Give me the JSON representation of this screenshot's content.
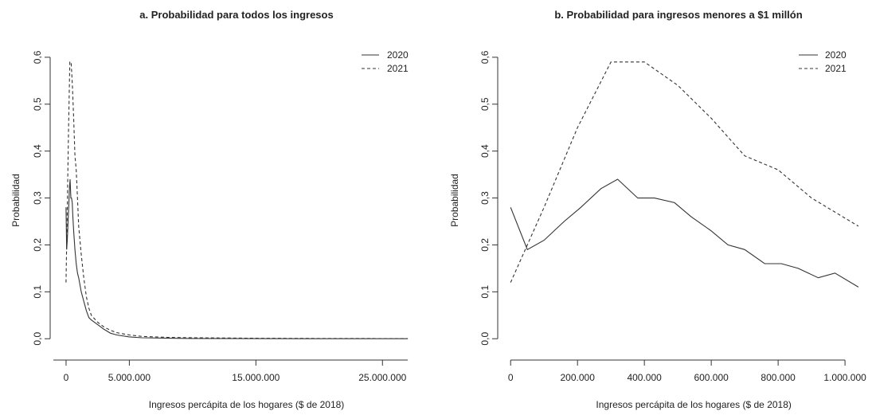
{
  "chart_data": [
    {
      "type": "line",
      "title": "a. Probabilidad para todos los ingresos",
      "xlabel": "Ingresos percápita de los hogares ($ de 2018)",
      "ylabel": "Probabilidad",
      "xlim": [
        -500000,
        27500000
      ],
      "ylim": [
        -0.02,
        0.61
      ],
      "x_ticks": [
        {
          "value": 0,
          "label": "0"
        },
        {
          "value": 5000000,
          "label": "5.000.000"
        },
        {
          "value": 15000000,
          "label": "15.000.000"
        },
        {
          "value": 25000000,
          "label": "25.000.000"
        }
      ],
      "x_axis_range": [
        -1000000,
        27000000
      ],
      "y_ticks": [
        {
          "value": 0.0,
          "label": "0,0"
        },
        {
          "value": 0.1,
          "label": "0,1"
        },
        {
          "value": 0.2,
          "label": "0,2"
        },
        {
          "value": 0.3,
          "label": "0,3"
        },
        {
          "value": 0.4,
          "label": "0,4"
        },
        {
          "value": 0.5,
          "label": "0,5"
        },
        {
          "value": 0.6,
          "label": "0,6"
        }
      ],
      "legend_position": "top-right",
      "series": [
        {
          "name": "2020",
          "style": "solid",
          "x": [
            0,
            50000,
            100000,
            160000,
            210000,
            270000,
            320000,
            380000,
            430000,
            490000,
            540000,
            600000,
            700000,
            800000,
            900000,
            1000000,
            1200000,
            1400000,
            1600000,
            1800000,
            2000000,
            2500000,
            3000000,
            3500000,
            4000000,
            5000000,
            6000000,
            8000000,
            10000000,
            15000000,
            20000000,
            25000000,
            27000000
          ],
          "y": [
            0.28,
            0.19,
            0.21,
            0.25,
            0.28,
            0.32,
            0.34,
            0.3,
            0.3,
            0.29,
            0.26,
            0.23,
            0.19,
            0.16,
            0.14,
            0.13,
            0.1,
            0.08,
            0.06,
            0.045,
            0.04,
            0.03,
            0.02,
            0.012,
            0.008,
            0.004,
            0.002,
            0.001,
            0.0005,
            0.0002,
            0.0001,
            0.0001,
            0.0001
          ]
        },
        {
          "name": "2021",
          "style": "dashed",
          "x": [
            0,
            100000,
            200000,
            300000,
            400000,
            500000,
            600000,
            700000,
            800000,
            900000,
            1000000,
            1200000,
            1400000,
            1600000,
            1800000,
            2000000,
            2500000,
            3000000,
            3500000,
            4000000,
            5000000,
            6000000,
            8000000,
            10000000,
            15000000,
            20000000,
            25000000,
            27000000
          ],
          "y": [
            0.12,
            0.28,
            0.45,
            0.59,
            0.59,
            0.54,
            0.47,
            0.39,
            0.36,
            0.3,
            0.24,
            0.18,
            0.13,
            0.09,
            0.065,
            0.05,
            0.035,
            0.025,
            0.018,
            0.013,
            0.008,
            0.005,
            0.003,
            0.002,
            0.001,
            0.0005,
            0.0003,
            0.0003
          ]
        }
      ]
    },
    {
      "type": "line",
      "title": "b. Probabilidad para ingresos menores a $1 millón",
      "xlabel": "Ingresos percápita de los hogares ($ de 2018)",
      "ylabel": "Probabilidad",
      "xlim": [
        -10000,
        1045000
      ],
      "ylim": [
        -0.02,
        0.61
      ],
      "x_ticks": [
        {
          "value": 0,
          "label": "0"
        },
        {
          "value": 200000,
          "label": "200.000"
        },
        {
          "value": 400000,
          "label": "400.000"
        },
        {
          "value": 600000,
          "label": "600.000"
        },
        {
          "value": 800000,
          "label": "800.000"
        },
        {
          "value": 1000000,
          "label": "1.000.000"
        }
      ],
      "x_axis_range": [
        0,
        1000000
      ],
      "y_ticks": [
        {
          "value": 0.0,
          "label": "0,0"
        },
        {
          "value": 0.1,
          "label": "0,1"
        },
        {
          "value": 0.2,
          "label": "0,2"
        },
        {
          "value": 0.3,
          "label": "0,3"
        },
        {
          "value": 0.4,
          "label": "0,4"
        },
        {
          "value": 0.5,
          "label": "0,5"
        },
        {
          "value": 0.6,
          "label": "0,6"
        }
      ],
      "legend_position": "top-right",
      "series": [
        {
          "name": "2020",
          "style": "solid",
          "x": [
            0,
            50000,
            100000,
            160000,
            210000,
            270000,
            320000,
            380000,
            430000,
            490000,
            540000,
            600000,
            650000,
            700000,
            760000,
            810000,
            860000,
            920000,
            970000,
            1040000
          ],
          "y": [
            0.28,
            0.19,
            0.21,
            0.25,
            0.28,
            0.32,
            0.34,
            0.3,
            0.3,
            0.29,
            0.26,
            0.23,
            0.2,
            0.19,
            0.16,
            0.16,
            0.15,
            0.13,
            0.14,
            0.11
          ]
        },
        {
          "name": "2021",
          "style": "dashed",
          "x": [
            0,
            100000,
            200000,
            300000,
            400000,
            500000,
            600000,
            700000,
            800000,
            900000,
            1040000
          ],
          "y": [
            0.12,
            0.28,
            0.45,
            0.59,
            0.59,
            0.54,
            0.47,
            0.39,
            0.36,
            0.3,
            0.24
          ]
        }
      ]
    }
  ]
}
